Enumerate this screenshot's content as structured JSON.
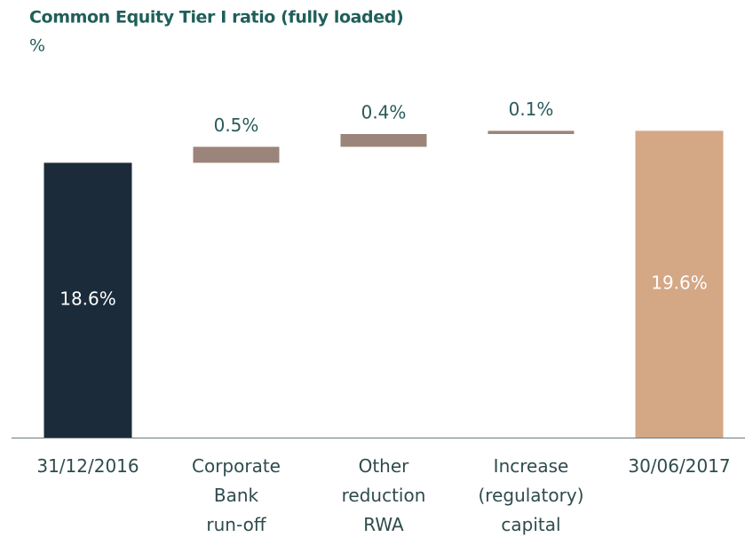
{
  "chart_data": {
    "type": "waterfall",
    "title": "Common Equity Tier I ratio (fully loaded)",
    "unit_label": "%",
    "categories": [
      [
        "31/12/2016"
      ],
      [
        "Corporate",
        "Bank",
        "run-off"
      ],
      [
        "Other",
        "reduction",
        "RWA"
      ],
      [
        "Increase",
        "(regulatory)",
        "capital"
      ],
      [
        "30/06/2017"
      ]
    ],
    "values": [
      18.6,
      0.5,
      0.4,
      0.1,
      19.6
    ],
    "value_labels": [
      "18.6%",
      "0.5%",
      "0.4%",
      "0.1%",
      "19.6%"
    ],
    "colors": [
      "#1b2b3a",
      "#9b8479",
      "#9b8479",
      "#9b8479",
      "#d4a785"
    ],
    "ylim": [
      10,
      20.5
    ]
  }
}
